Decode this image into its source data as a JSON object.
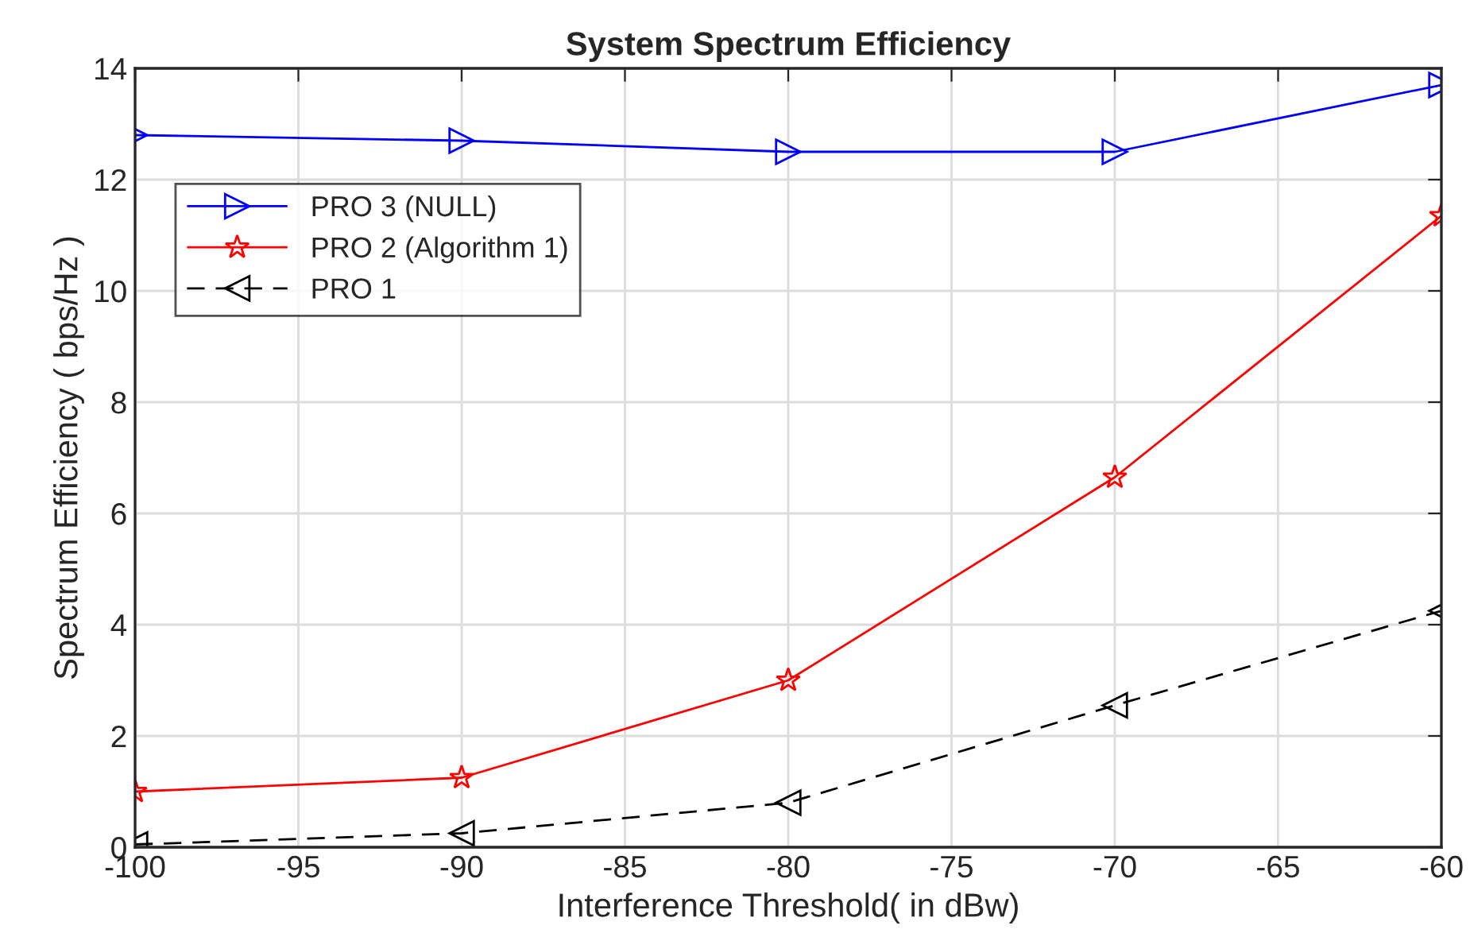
{
  "chart_data": {
    "type": "line",
    "title": "System Spectrum Efficiency",
    "xlabel": "Interference Threshold( in dBw)",
    "ylabel": "Spectrum Efficiency ( bps/Hz )",
    "x": [
      -100,
      -90,
      -80,
      -70,
      -60
    ],
    "series": [
      {
        "name": "PRO 3 (NULL)",
        "color": "#0000ff",
        "values": [
          12.8,
          12.7,
          12.5,
          12.5,
          13.7
        ],
        "marker": "triangle_right",
        "line_style": "solid"
      },
      {
        "name": "PRO 2 (Algorithm 1)",
        "color": "#ff0000",
        "values": [
          1.0,
          1.25,
          3.0,
          6.65,
          11.35
        ],
        "marker": "star",
        "line_style": "solid"
      },
      {
        "name": "PRO 1",
        "color": "#000000",
        "values": [
          0.05,
          0.25,
          0.8,
          2.55,
          4.25
        ],
        "marker": "triangle_left",
        "line_style": "dashed"
      }
    ],
    "xlim": [
      -100,
      -60
    ],
    "xticks": [
      -100,
      -95,
      -90,
      -85,
      -80,
      -75,
      -70,
      -65,
      -60
    ],
    "ylim": [
      0,
      14
    ],
    "yticks": [
      0,
      2,
      4,
      6,
      8,
      10,
      12,
      14
    ],
    "grid": true,
    "legend": "top left"
  }
}
